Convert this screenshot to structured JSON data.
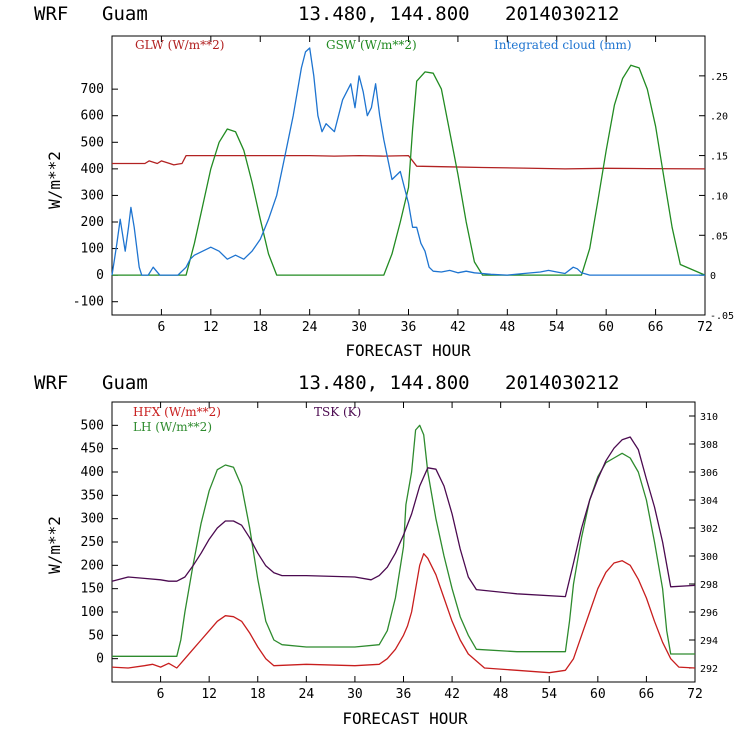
{
  "chart_data": [
    {
      "type": "line",
      "header": {
        "model": "WRF",
        "station": "Guam",
        "coords": "13.480, 144.800",
        "init": "2014030212"
      },
      "xlabel": "FORECAST HOUR",
      "ylabel": "W/m**2",
      "xlim": [
        0,
        72
      ],
      "ylim": [
        -150,
        900
      ],
      "y2lim": [
        -0.05,
        0.3
      ],
      "x_ticks": [
        6,
        12,
        18,
        24,
        30,
        36,
        42,
        48,
        54,
        60,
        66,
        72
      ],
      "y_ticks": [
        -100,
        0,
        100,
        200,
        300,
        400,
        500,
        600,
        700
      ],
      "y2_ticks": [
        {
          "v": -0.05,
          "label": "-.05"
        },
        {
          "v": 0,
          "label": "0"
        },
        {
          "v": 0.05,
          "label": ".05"
        },
        {
          "v": 0.1,
          "label": ".10"
        },
        {
          "v": 0.15,
          "label": ".15"
        },
        {
          "v": 0.2,
          "label": ".20"
        },
        {
          "v": 0.25,
          "label": ".25"
        }
      ],
      "series": [
        {
          "name": "GLW (W/m**2)",
          "axis": "left",
          "color": "#b22222",
          "x": [
            0,
            4,
            4.5,
            5.5,
            6,
            7,
            7.5,
            8,
            8.5,
            9,
            12,
            15,
            18,
            21,
            24,
            27,
            30,
            33,
            36,
            37,
            40,
            45,
            50,
            55,
            60,
            65,
            72
          ],
          "y": [
            420,
            420,
            430,
            420,
            430,
            420,
            415,
            418,
            420,
            450,
            450,
            450,
            450,
            450,
            450,
            448,
            450,
            448,
            450,
            410,
            408,
            405,
            403,
            400,
            402,
            401,
            400
          ]
        },
        {
          "name": "GSW (W/m**2)",
          "axis": "left",
          "color": "#228b22",
          "x": [
            0,
            9,
            10,
            11,
            12,
            13,
            14,
            15,
            16,
            17,
            18,
            19,
            20,
            33,
            34,
            35,
            36,
            36.5,
            37,
            38,
            39,
            40,
            41,
            42,
            43,
            44,
            45,
            57,
            58,
            59,
            60,
            61,
            62,
            63,
            64,
            65,
            66,
            67,
            68,
            69,
            72
          ],
          "y": [
            0,
            0,
            120,
            260,
            400,
            500,
            550,
            540,
            470,
            350,
            210,
            80,
            0,
            0,
            80,
            200,
            330,
            550,
            730,
            765,
            760,
            700,
            540,
            380,
            200,
            50,
            0,
            0,
            100,
            280,
            470,
            640,
            740,
            790,
            780,
            700,
            560,
            370,
            180,
            40,
            0
          ]
        },
        {
          "name": "Integrated cloud (mm)",
          "axis": "right",
          "color": "#1e74d0",
          "x": [
            0,
            0.3,
            0.6,
            1,
            1.3,
            1.6,
            2,
            2.3,
            2.7,
            3,
            3.3,
            3.6,
            4,
            4.4,
            4.7,
            5,
            5.4,
            5.8,
            6.2,
            7,
            8,
            9,
            9.5,
            10,
            11,
            12,
            13,
            14,
            15,
            16,
            17,
            18,
            19,
            20,
            21,
            22,
            23,
            23.5,
            24,
            24.5,
            25,
            25.5,
            26,
            27,
            28,
            29,
            29.5,
            30,
            30.5,
            31,
            31.5,
            32,
            32.5,
            33,
            34,
            35,
            35.5,
            36,
            36.5,
            37,
            37.5,
            38,
            38.5,
            39,
            40,
            41,
            42,
            43,
            44,
            45,
            46,
            48,
            50,
            52,
            53,
            54,
            55,
            56,
            56.5,
            57,
            58,
            60,
            72
          ],
          "y": [
            0,
            0.02,
            0.04,
            0.07,
            0.05,
            0.03,
            0.06,
            0.085,
            0.06,
            0.035,
            0.01,
            0,
            0,
            0,
            0.005,
            0.01,
            0.005,
            0,
            0,
            0,
            0,
            0.01,
            0.02,
            0.025,
            0.03,
            0.035,
            0.03,
            0.02,
            0.025,
            0.02,
            0.03,
            0.045,
            0.07,
            0.1,
            0.15,
            0.2,
            0.26,
            0.28,
            0.285,
            0.25,
            0.2,
            0.18,
            0.19,
            0.18,
            0.22,
            0.24,
            0.21,
            0.25,
            0.23,
            0.2,
            0.21,
            0.24,
            0.2,
            0.17,
            0.12,
            0.13,
            0.11,
            0.09,
            0.06,
            0.06,
            0.04,
            0.03,
            0.01,
            0.005,
            0.004,
            0.006,
            0.003,
            0.005,
            0.003,
            0.002,
            0.001,
            0,
            0.002,
            0.004,
            0.006,
            0.004,
            0.002,
            0.01,
            0.008,
            0.003,
            0,
            0,
            0
          ]
        }
      ]
    },
    {
      "type": "line",
      "header": {
        "model": "WRF",
        "station": "Guam",
        "coords": "13.480, 144.800",
        "init": "2014030212"
      },
      "xlabel": "FORECAST HOUR",
      "ylabel": "W/m**2",
      "xlim": [
        0,
        72
      ],
      "ylim": [
        -50,
        550
      ],
      "y2lim": [
        291,
        311
      ],
      "x_ticks": [
        6,
        12,
        18,
        24,
        30,
        36,
        42,
        48,
        54,
        60,
        66,
        72
      ],
      "y_ticks": [
        0,
        50,
        100,
        150,
        200,
        250,
        300,
        350,
        400,
        450,
        500
      ],
      "y2_ticks": [
        {
          "v": 292,
          "label": "292"
        },
        {
          "v": 294,
          "label": "294"
        },
        {
          "v": 296,
          "label": "296"
        },
        {
          "v": 298,
          "label": "298"
        },
        {
          "v": 300,
          "label": "300"
        },
        {
          "v": 302,
          "label": "302"
        },
        {
          "v": 304,
          "label": "304"
        },
        {
          "v": 306,
          "label": "306"
        },
        {
          "v": 308,
          "label": "308"
        },
        {
          "v": 310,
          "label": "310"
        }
      ],
      "series": [
        {
          "name": "HFX (W/m**2)",
          "axis": "left",
          "color": "#c81e1e",
          "x": [
            0,
            2,
            4,
            5,
            6,
            7,
            8,
            9,
            10,
            11,
            12,
            13,
            14,
            15,
            16,
            17,
            18,
            19,
            20,
            24,
            30,
            33,
            34,
            35,
            36,
            36.5,
            37,
            38,
            38.5,
            39,
            40,
            41,
            42,
            43,
            44,
            45,
            46,
            50,
            54,
            56,
            57,
            58,
            59,
            60,
            61,
            62,
            63,
            64,
            65,
            66,
            67,
            68,
            69,
            70,
            72
          ],
          "y": [
            -18,
            -20,
            -15,
            -12,
            -18,
            -10,
            -20,
            0,
            20,
            40,
            60,
            80,
            92,
            90,
            80,
            55,
            25,
            0,
            -15,
            -12,
            -15,
            -12,
            0,
            20,
            50,
            70,
            100,
            200,
            225,
            215,
            180,
            130,
            80,
            40,
            10,
            -5,
            -20,
            -25,
            -30,
            -25,
            0,
            50,
            100,
            150,
            185,
            205,
            210,
            200,
            170,
            130,
            80,
            35,
            0,
            -18,
            -20
          ]
        },
        {
          "name": "LH (W/m**2)",
          "axis": "left",
          "color": "#2e8b2e",
          "x": [
            0,
            8,
            8.5,
            9,
            10,
            11,
            12,
            13,
            14,
            15,
            16,
            17,
            18,
            19,
            20,
            21,
            24,
            30,
            33,
            34,
            35,
            36,
            36.3,
            37,
            37.5,
            38,
            38.5,
            39,
            40,
            41,
            42,
            43,
            44,
            45,
            50,
            56,
            56.5,
            57,
            58,
            59,
            60,
            61,
            62,
            63,
            64,
            65,
            66,
            67,
            68,
            68.5,
            69,
            72
          ],
          "y": [
            5,
            5,
            40,
            100,
            200,
            290,
            360,
            405,
            415,
            410,
            370,
            280,
            170,
            80,
            40,
            30,
            25,
            25,
            30,
            60,
            130,
            240,
            330,
            400,
            490,
            500,
            480,
            400,
            300,
            220,
            150,
            90,
            50,
            20,
            15,
            15,
            80,
            160,
            260,
            340,
            390,
            420,
            430,
            440,
            430,
            400,
            340,
            250,
            150,
            60,
            10,
            10
          ]
        },
        {
          "name": "TSK (K)",
          "axis": "right",
          "color": "#4b0a50",
          "x": [
            0,
            2,
            4,
            6,
            7,
            8,
            9,
            10,
            11,
            12,
            13,
            14,
            15,
            16,
            17,
            18,
            19,
            20,
            21,
            24,
            30,
            32,
            33,
            34,
            35,
            36,
            37,
            38,
            39,
            40,
            41,
            42,
            43,
            44,
            45,
            50,
            56,
            57,
            58,
            59,
            60,
            61,
            62,
            63,
            64,
            65,
            66,
            67,
            68,
            69,
            72
          ],
          "y": [
            298.2,
            298.5,
            298.4,
            298.3,
            298.2,
            298.2,
            298.5,
            299.3,
            300.2,
            301.2,
            302.0,
            302.5,
            302.5,
            302.2,
            301.3,
            300.2,
            299.3,
            298.8,
            298.6,
            298.6,
            298.5,
            298.3,
            298.6,
            299.2,
            300.2,
            301.5,
            303.0,
            305.0,
            306.3,
            306.2,
            305.0,
            303.0,
            300.5,
            298.5,
            297.6,
            297.3,
            297.1,
            299.5,
            302.0,
            304.0,
            305.5,
            306.8,
            307.7,
            308.3,
            308.5,
            307.6,
            305.5,
            303.5,
            301.0,
            297.8,
            297.9
          ]
        }
      ]
    }
  ]
}
